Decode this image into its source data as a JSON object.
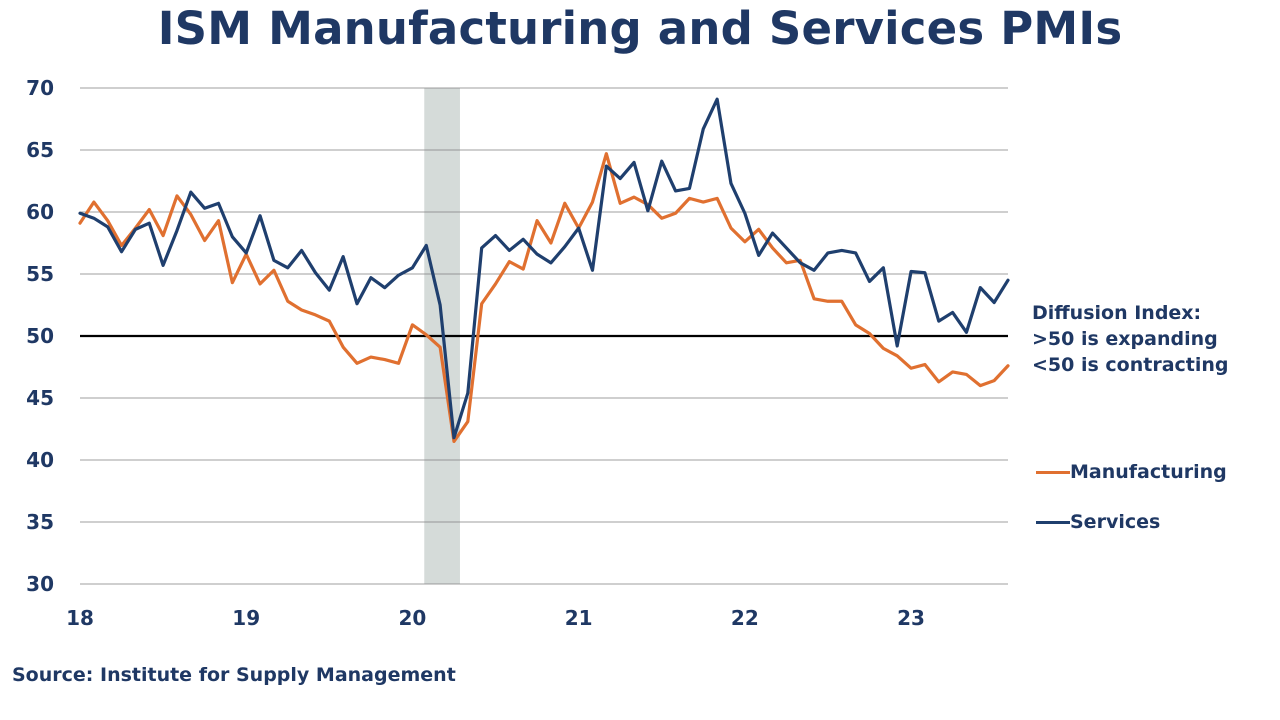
{
  "title": "ISM Manufacturing and Services PMIs",
  "annotation": {
    "line1": "Diffusion Index:",
    "line2": ">50 is expanding",
    "line3": "<50 is contracting"
  },
  "source": "Source: Institute for Supply Management",
  "colors": {
    "manufacturing": "#e07030",
    "services": "#1f3f6e",
    "text": "#1f3864",
    "recession": "#d5dbd9",
    "grid": "#7f7f7f",
    "reference_line": "#000000"
  },
  "chart_data": {
    "type": "line",
    "title": "ISM Manufacturing and Services PMIs",
    "x_start": "2018-01",
    "x_end": "2023-08",
    "x_ticks": [
      "18",
      "19",
      "20",
      "21",
      "22",
      "23"
    ],
    "y_ticks": [
      "30",
      "35",
      "40",
      "45",
      "50",
      "55",
      "60",
      "65",
      "70"
    ],
    "ylim": [
      30,
      70
    ],
    "grid": "horizontal",
    "reference_line": 50,
    "recession_shading": [
      "2020-02",
      "2020-04"
    ],
    "legend_position": "right",
    "x": [
      "2018-01",
      "2018-02",
      "2018-03",
      "2018-04",
      "2018-05",
      "2018-06",
      "2018-07",
      "2018-08",
      "2018-09",
      "2018-10",
      "2018-11",
      "2018-12",
      "2019-01",
      "2019-02",
      "2019-03",
      "2019-04",
      "2019-05",
      "2019-06",
      "2019-07",
      "2019-08",
      "2019-09",
      "2019-10",
      "2019-11",
      "2019-12",
      "2020-01",
      "2020-02",
      "2020-03",
      "2020-04",
      "2020-05",
      "2020-06",
      "2020-07",
      "2020-08",
      "2020-09",
      "2020-10",
      "2020-11",
      "2020-12",
      "2021-01",
      "2021-02",
      "2021-03",
      "2021-04",
      "2021-05",
      "2021-06",
      "2021-07",
      "2021-08",
      "2021-09",
      "2021-10",
      "2021-11",
      "2021-12",
      "2022-01",
      "2022-02",
      "2022-03",
      "2022-04",
      "2022-05",
      "2022-06",
      "2022-07",
      "2022-08",
      "2022-09",
      "2022-10",
      "2022-11",
      "2022-12",
      "2023-01",
      "2023-02",
      "2023-03",
      "2023-04",
      "2023-05",
      "2023-06",
      "2023-07",
      "2023-08"
    ],
    "series": [
      {
        "name": "Manufacturing",
        "values": [
          59.1,
          60.8,
          59.3,
          57.3,
          58.7,
          60.2,
          58.1,
          61.3,
          59.8,
          57.7,
          59.3,
          54.3,
          56.6,
          54.2,
          55.3,
          52.8,
          52.1,
          51.7,
          51.2,
          49.1,
          47.8,
          48.3,
          48.1,
          47.8,
          50.9,
          50.1,
          49.1,
          41.5,
          43.1,
          52.6,
          54.2,
          56.0,
          55.4,
          59.3,
          57.5,
          60.7,
          58.7,
          60.8,
          64.7,
          60.7,
          61.2,
          60.6,
          59.5,
          59.9,
          61.1,
          60.8,
          61.1,
          58.7,
          57.6,
          58.6,
          57.1,
          55.9,
          56.1,
          53.0,
          52.8,
          52.8,
          50.9,
          50.2,
          49.0,
          48.4,
          47.4,
          47.7,
          46.3,
          47.1,
          46.9,
          46.0,
          46.4,
          47.6
        ]
      },
      {
        "name": "Services",
        "values": [
          59.9,
          59.5,
          58.8,
          56.8,
          58.6,
          59.1,
          55.7,
          58.5,
          61.6,
          60.3,
          60.7,
          58.0,
          56.7,
          59.7,
          56.1,
          55.5,
          56.9,
          55.1,
          53.7,
          56.4,
          52.6,
          54.7,
          53.9,
          54.9,
          55.5,
          57.3,
          52.5,
          41.8,
          45.4,
          57.1,
          58.1,
          56.9,
          57.8,
          56.6,
          55.9,
          57.2,
          58.7,
          55.3,
          63.7,
          62.7,
          64.0,
          60.1,
          64.1,
          61.7,
          61.9,
          66.7,
          69.1,
          62.3,
          59.9,
          56.5,
          58.3,
          57.1,
          55.9,
          55.3,
          56.7,
          56.9,
          56.7,
          54.4,
          55.5,
          49.2,
          55.2,
          55.1,
          51.2,
          51.9,
          50.3,
          53.9,
          52.7,
          54.5
        ]
      }
    ]
  }
}
